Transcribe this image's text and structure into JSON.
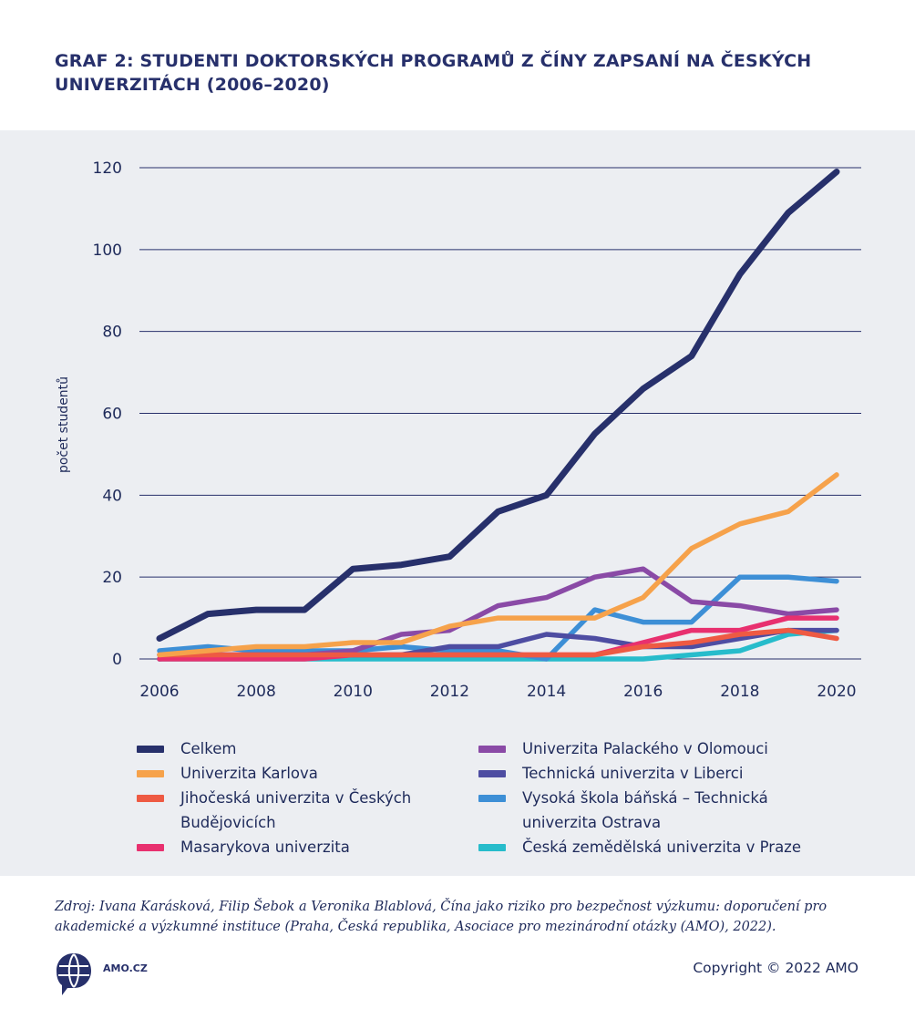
{
  "title": {
    "line1": "GRAF 2: STUDENTI DOKTORSKÝCH PROGRAMŮ Z ČÍNY ZAPSANÍ NA ČESKÝCH",
    "line2": "UNIVERZITÁCH (2006–2020)"
  },
  "chart_data": {
    "type": "line",
    "ylabel": "počet studentů",
    "xlabel": "",
    "x": [
      2006,
      2007,
      2008,
      2009,
      2010,
      2011,
      2012,
      2013,
      2014,
      2015,
      2016,
      2017,
      2018,
      2019,
      2020
    ],
    "x_ticks": [
      "2006",
      "2008",
      "2010",
      "2012",
      "2014",
      "2016",
      "2018",
      "2020"
    ],
    "y_ticks": [
      "0",
      "20",
      "40",
      "60",
      "80",
      "100",
      "120"
    ],
    "ylim": [
      0,
      120
    ],
    "grid": "horizontal",
    "legend_position": "bottom",
    "series": [
      {
        "name": "Celkem",
        "color": "#27306b",
        "values": [
          5,
          11,
          12,
          12,
          22,
          23,
          25,
          36,
          40,
          55,
          66,
          74,
          94,
          109,
          119
        ]
      },
      {
        "name": "Univerzita Karlova",
        "color": "#f6a24b",
        "values": [
          1,
          2,
          3,
          3,
          4,
          4,
          8,
          10,
          10,
          10,
          15,
          27,
          33,
          36,
          45
        ]
      },
      {
        "name": "Jihočeská univerzita v Českých Budějovicích",
        "color": "#ee5a43",
        "values": [
          1,
          1,
          1,
          1,
          1,
          1,
          1,
          1,
          1,
          1,
          3,
          4,
          6,
          7,
          5
        ]
      },
      {
        "name": "Masarykova univerzita",
        "color": "#e8306f",
        "values": [
          0,
          0,
          0,
          0,
          1,
          1,
          1,
          1,
          1,
          1,
          4,
          7,
          7,
          10,
          10
        ]
      },
      {
        "name": "Univerzita Palackého v Olomouci",
        "color": "#8a4aa6",
        "values": [
          1,
          1,
          1,
          1,
          2,
          6,
          7,
          13,
          15,
          20,
          22,
          14,
          13,
          11,
          12
        ]
      },
      {
        "name": "Technická univerzita v Liberci",
        "color": "#4e4da2",
        "values": [
          0,
          1,
          1,
          1,
          1,
          1,
          3,
          3,
          6,
          5,
          3,
          3,
          5,
          7,
          7
        ]
      },
      {
        "name": "Vysoká škola báňská – Technická univerzita Ostrava",
        "color": "#3d8fd6",
        "values": [
          2,
          3,
          2,
          2,
          2,
          3,
          2,
          2,
          0,
          12,
          9,
          9,
          20,
          20,
          19
        ]
      },
      {
        "name": "Česká zemědělská univerzita v Praze",
        "color": "#27bccb",
        "values": [
          0,
          0,
          0,
          0,
          0,
          0,
          0,
          0,
          0,
          0,
          0,
          1,
          2,
          6,
          7
        ]
      }
    ]
  },
  "legend": [
    {
      "label": "Celkem"
    },
    {
      "label": "Univerzita Karlova"
    },
    {
      "label": "Jihočeská univerzita v Českých Budějovicích"
    },
    {
      "label": "Masarykova univerzita"
    },
    {
      "label": "Univerzita Palackého v Olomouci"
    },
    {
      "label": "Technická univerzita v Liberci"
    },
    {
      "label": "Vysoká škola báňská – Technická univerzita Ostrava"
    },
    {
      "label": "Česká zemědělská univerzita v Praze"
    }
  ],
  "source": "Zdroj: Ivana Karásková, Filip Šebok a Veronika Blablová, Čína jako riziko pro bezpečnost výzkumu: doporučení pro akademické a výzkumné instituce (Praha, Česká republika, Asociace pro mezinárodní otázky (AMO), 2022).",
  "footer": {
    "logo_text": "AMO.CZ",
    "logo_icon": "globe-speech-icon",
    "copyright": "Copyright © 2022 AMO"
  }
}
